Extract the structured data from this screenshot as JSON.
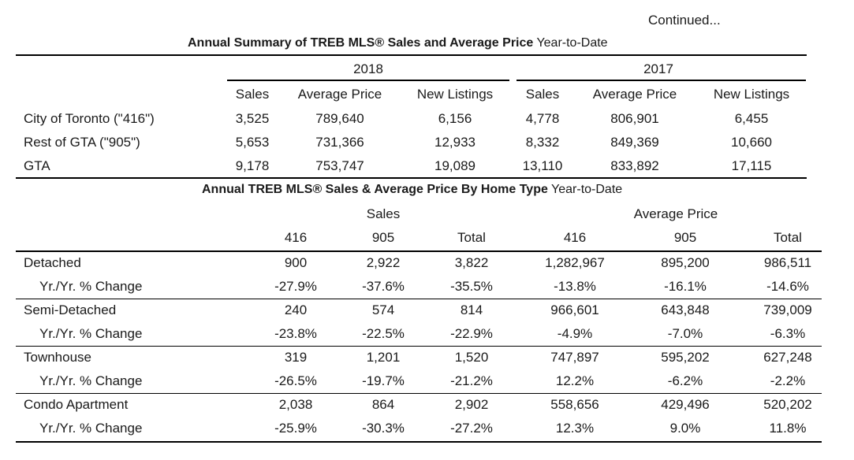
{
  "continued": "Continued...",
  "summary": {
    "title_bold": "Annual Summary of TREB MLS® Sales and Average Price",
    "title_rest": " Year-to-Date",
    "years": [
      "2018",
      "2017"
    ],
    "columns": [
      "Sales",
      "Average Price",
      "New Listings",
      "Sales",
      "Average Price",
      "New Listings"
    ],
    "rows": [
      {
        "label": "City of Toronto (\"416\")",
        "values": [
          "3,525",
          "789,640",
          "6,156",
          "4,778",
          "806,901",
          "6,455"
        ]
      },
      {
        "label": "Rest of GTA (\"905\")",
        "values": [
          "5,653",
          "731,366",
          "12,933",
          "8,332",
          "849,369",
          "10,660"
        ]
      },
      {
        "label": "GTA",
        "values": [
          "9,178",
          "753,747",
          "19,089",
          "13,110",
          "833,892",
          "17,115"
        ]
      }
    ]
  },
  "hometype": {
    "title_bold": "Annual TREB MLS® Sales & Average Price  By Home Type",
    "title_rest": " Year-to-Date",
    "groups": [
      "Sales",
      "Average Price"
    ],
    "columns": [
      "416",
      "905",
      "Total",
      "416",
      "905",
      "Total"
    ],
    "rows": [
      {
        "label": "Detached",
        "values": [
          "900",
          "2,922",
          "3,822",
          "1,282,967",
          "895,200",
          "986,511"
        ]
      },
      {
        "label": "Yr./Yr. % Change",
        "values": [
          "-27.9%",
          "-37.6%",
          "-35.5%",
          "-13.8%",
          "-16.1%",
          "-14.6%"
        ]
      },
      {
        "label": "Semi-Detached",
        "values": [
          "240",
          "574",
          "814",
          "966,601",
          "643,848",
          "739,009"
        ]
      },
      {
        "label": "Yr./Yr. % Change",
        "values": [
          "-23.8%",
          "-22.5%",
          "-22.9%",
          "-4.9%",
          "-7.0%",
          "-6.3%"
        ]
      },
      {
        "label": "Townhouse",
        "values": [
          "319",
          "1,201",
          "1,520",
          "747,897",
          "595,202",
          "627,248"
        ]
      },
      {
        "label": "Yr./Yr. % Change",
        "values": [
          "-26.5%",
          "-19.7%",
          "-21.2%",
          "12.2%",
          "-6.2%",
          "-2.2%"
        ]
      },
      {
        "label": "Condo Apartment",
        "values": [
          "2,038",
          "864",
          "2,902",
          "558,656",
          "429,496",
          "520,202"
        ]
      },
      {
        "label": "Yr./Yr. % Change",
        "values": [
          "-25.9%",
          "-30.3%",
          "-27.2%",
          "12.3%",
          "9.0%",
          "11.8%"
        ]
      }
    ]
  }
}
